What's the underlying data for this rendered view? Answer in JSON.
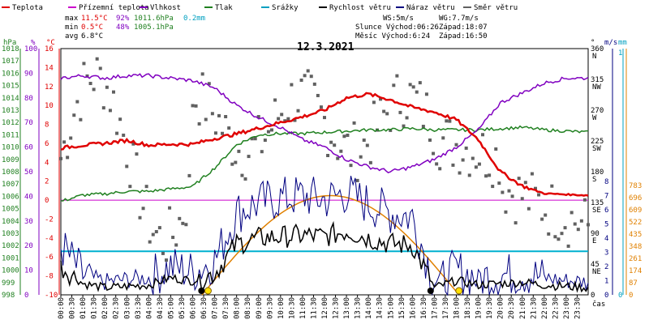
{
  "legend": [
    {
      "label": "Teplota",
      "color": "#e00000"
    },
    {
      "label": "Přízemní teplota",
      "color": "#cc00cc"
    },
    {
      "label": "Vlhkost",
      "color": "#8000c0"
    },
    {
      "label": "Tlak",
      "color": "#208020"
    },
    {
      "label": "Srážky",
      "color": "#00a0c0"
    },
    {
      "label": "Rychlost větru",
      "color": "#000000"
    },
    {
      "label": "Náraz větru",
      "color": "#000080"
    },
    {
      "label": "Směr větru",
      "color": "#606060"
    }
  ],
  "stats": {
    "max_label": "max",
    "max_temp": "11.5°C",
    "max_hum": "92%",
    "max_press": "1011.6hPa",
    "max_rain": "0.2mm",
    "min_label": "min",
    "min_temp": "0.5°C",
    "min_hum": "48%",
    "min_press": "1005.1hPa",
    "avg_label": "avg",
    "avg_temp": "6.8°C"
  },
  "wind_info": {
    "ws": "WS:5m/s",
    "wg": "WG:7.7m/s",
    "sun": "Slunce Východ:06:26",
    "sun_set": "Západ:18:07",
    "moon": "Měsíc  Východ:6:24",
    "moon_set": "Západ:16:50"
  },
  "title": "12.3.2021",
  "axis_units": {
    "hpa": "hPa",
    "pct": "%",
    "degc": "°C",
    "deg": "°",
    "ms": "m/s",
    "mm": "mm",
    "time": "čas"
  },
  "colors": {
    "temp": "#e00000",
    "hum": "#8000c0",
    "press": "#208020",
    "rain": "#00a0c0",
    "wind": "#000000",
    "gust": "#000080",
    "dir": "#606060",
    "sun": "#e08000",
    "ground": "#cc00cc"
  },
  "chart_data": {
    "type": "line",
    "title": "12.3.2021",
    "x_labels": [
      "00:00",
      "00:30",
      "01:00",
      "01:30",
      "02:00",
      "02:30",
      "03:00",
      "03:30",
      "04:00",
      "04:30",
      "05:00",
      "05:30",
      "06:00",
      "06:30",
      "07:00",
      "07:30",
      "08:00",
      "08:30",
      "09:00",
      "09:30",
      "10:00",
      "10:30",
      "11:00",
      "11:30",
      "12:00",
      "12:30",
      "13:00",
      "13:30",
      "14:00",
      "14:30",
      "15:00",
      "15:30",
      "16:00",
      "16:30",
      "17:00",
      "17:30",
      "18:00",
      "18:30",
      "19:00",
      "19:30",
      "20:00",
      "20:30",
      "21:00",
      "21:30",
      "22:00",
      "22:30",
      "23:00",
      "23:30"
    ],
    "y_left_hpa": [
      "1018",
      "1017",
      "1016",
      "1015",
      "1014",
      "1013",
      "1012",
      "1011",
      "1010",
      "1009",
      "1008",
      "1007",
      "1006",
      "1005",
      "1004",
      "1003",
      "1002",
      "1001",
      "1000",
      "999",
      "998"
    ],
    "y_left_pct": [
      "100",
      "90",
      "80",
      "70",
      "60",
      "50",
      "40",
      "30",
      "20",
      "10",
      "0"
    ],
    "y_left_temp": [
      "16",
      "14",
      "12",
      "10",
      "8",
      "6",
      "4",
      "2",
      "0",
      "-2",
      "-4",
      "-6",
      "-8",
      "-10"
    ],
    "y_right_deg": [
      {
        "num": "360",
        "dir": "N"
      },
      {
        "num": "315",
        "dir": "NW"
      },
      {
        "num": "270",
        "dir": "W"
      },
      {
        "num": "225",
        "dir": "SW"
      },
      {
        "num": "180",
        "dir": "S"
      },
      {
        "num": "135",
        "dir": "SE"
      },
      {
        "num": "90",
        "dir": "E"
      },
      {
        "num": "45",
        "dir": "NE"
      },
      {
        "num": "0",
        "dir": ""
      }
    ],
    "y_right_ms": [
      "8",
      "7",
      "6",
      "5",
      "4",
      "3",
      "2",
      "1",
      "0"
    ],
    "y_right_mm": [
      "1",
      "0"
    ],
    "y_right_extra": [
      "783",
      "696",
      "609",
      "522",
      "435",
      "348",
      "261",
      "174",
      "87",
      "0"
    ],
    "series": [
      {
        "name": "Teplota",
        "unit": "°C",
        "hours": [
          0,
          1,
          2,
          3,
          4,
          5,
          6,
          7,
          8,
          9,
          10,
          11,
          12,
          13,
          14,
          15,
          16,
          17,
          18,
          19,
          20,
          21,
          22,
          23,
          24
        ],
        "values": [
          5.5,
          5.8,
          6.0,
          6.3,
          5.8,
          5.9,
          5.9,
          6.5,
          7.0,
          7.6,
          8.2,
          8.8,
          9.5,
          10.8,
          11.2,
          10.6,
          9.8,
          9.3,
          8.5,
          6.4,
          3.0,
          1.5,
          0.7,
          0.6,
          0.5
        ]
      },
      {
        "name": "Vlhkost",
        "unit": "%",
        "hours": [
          0,
          1,
          2,
          3,
          4,
          5,
          6,
          7,
          8,
          9,
          10,
          11,
          12,
          13,
          14,
          15,
          16,
          17,
          18,
          19,
          20,
          21,
          22,
          23,
          24
        ],
        "values": [
          88,
          89,
          88,
          89,
          89,
          88,
          87,
          84,
          77,
          72,
          68,
          63,
          60,
          55,
          52,
          50,
          52,
          55,
          60,
          67,
          78,
          82,
          86,
          88,
          88
        ]
      },
      {
        "name": "Tlak",
        "unit": "hPa",
        "hours": [
          0,
          1,
          2,
          3,
          4,
          5,
          6,
          7,
          8,
          9,
          10,
          11,
          12,
          13,
          14,
          15,
          16,
          17,
          18,
          19,
          20,
          21,
          22,
          23,
          24
        ],
        "values": [
          1005.6,
          1006.1,
          1006.2,
          1006.4,
          1006.4,
          1006.6,
          1006.8,
          1008.3,
          1010.2,
          1011.0,
          1011.1,
          1011.1,
          1011.2,
          1011.3,
          1011.4,
          1011.4,
          1011.5,
          1011.4,
          1011.4,
          1011.4,
          1011.5,
          1011.6,
          1011.4,
          1011.3,
          1011.2
        ]
      },
      {
        "name": "Rychlost větru",
        "unit": "m/s",
        "hours": [
          0,
          1,
          2,
          3,
          4,
          5,
          6,
          7,
          8,
          9,
          10,
          11,
          12,
          13,
          14,
          15,
          16,
          17,
          18,
          19,
          20,
          21,
          22,
          23,
          24
        ],
        "values": [
          2.0,
          0.8,
          0.5,
          0.6,
          0.7,
          1.2,
          1.0,
          1.5,
          3.6,
          4.0,
          4.1,
          4.2,
          4.1,
          4.5,
          4.0,
          3.6,
          3.5,
          0.5,
          1.0,
          0.7,
          0.8,
          0.9,
          0.7,
          0.6,
          0.5
        ]
      },
      {
        "name": "Náraz větru",
        "unit": "m/s",
        "hours": [
          0,
          1,
          2,
          3,
          4,
          5,
          6,
          7,
          8,
          9,
          10,
          11,
          12,
          13,
          14,
          15,
          16,
          17,
          18,
          19,
          20,
          21,
          22,
          23,
          24
        ],
        "values": [
          3.5,
          1.4,
          0.9,
          1.1,
          1.2,
          2.0,
          1.6,
          2.4,
          5.8,
          6.5,
          6.8,
          7.0,
          6.7,
          7.2,
          6.4,
          5.8,
          5.5,
          0.9,
          1.7,
          1.2,
          1.4,
          1.5,
          1.2,
          1.0,
          0.9
        ]
      },
      {
        "name": "Srážky",
        "unit": "mm",
        "hours": [
          0,
          24
        ],
        "values": [
          0.0,
          0.0
        ]
      }
    ],
    "sun_curve": {
      "rise": 6.43,
      "set": 18.12,
      "peak": 7.0
    }
  }
}
